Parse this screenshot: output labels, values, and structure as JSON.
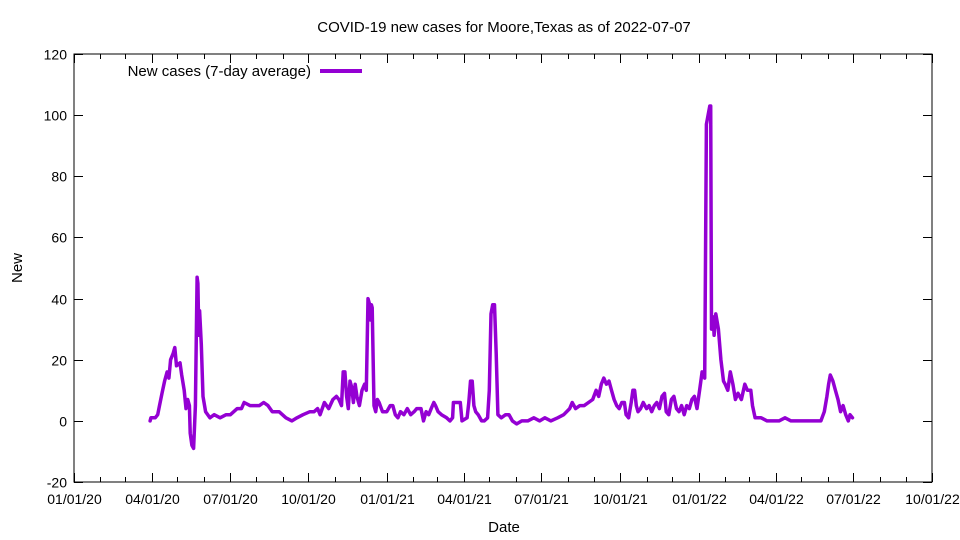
{
  "chart_data": {
    "type": "line",
    "title": "COVID-19 new cases for Moore,Texas as of 2022-07-07",
    "xlabel": "Date",
    "ylabel": "New",
    "xlim": [
      "2020-01-01",
      "2022-10-01"
    ],
    "ylim": [
      -20,
      120
    ],
    "x_ticks": [
      "01/01/20",
      "04/01/20",
      "07/01/20",
      "10/01/20",
      "01/01/21",
      "04/01/21",
      "07/01/21",
      "10/01/21",
      "01/01/22",
      "04/01/22",
      "07/01/22",
      "10/01/22"
    ],
    "y_ticks": [
      -20,
      0,
      20,
      40,
      60,
      80,
      100,
      120
    ],
    "grid": false,
    "legend_position": "top-left",
    "series": [
      {
        "name": "New cases (7-day average)",
        "color": "#9400d3",
        "points": [
          [
            "2020-03-30",
            0
          ],
          [
            "2020-03-31",
            1
          ],
          [
            "2020-04-05",
            1
          ],
          [
            "2020-04-08",
            2
          ],
          [
            "2020-04-10",
            5
          ],
          [
            "2020-04-13",
            9
          ],
          [
            "2020-04-16",
            13
          ],
          [
            "2020-04-19",
            16
          ],
          [
            "2020-04-21",
            14
          ],
          [
            "2020-04-23",
            20
          ],
          [
            "2020-04-26",
            22
          ],
          [
            "2020-04-28",
            24
          ],
          [
            "2020-04-30",
            18
          ],
          [
            "2020-05-04",
            19
          ],
          [
            "2020-05-06",
            15
          ],
          [
            "2020-05-09",
            10
          ],
          [
            "2020-05-11",
            4
          ],
          [
            "2020-05-13",
            7
          ],
          [
            "2020-05-15",
            5
          ],
          [
            "2020-05-16",
            -4
          ],
          [
            "2020-05-18",
            -8
          ],
          [
            "2020-05-20",
            -9
          ],
          [
            "2020-05-22",
            5
          ],
          [
            "2020-05-23",
            25
          ],
          [
            "2020-05-24",
            47
          ],
          [
            "2020-05-25",
            45
          ],
          [
            "2020-05-26",
            28
          ],
          [
            "2020-05-27",
            36
          ],
          [
            "2020-05-29",
            25
          ],
          [
            "2020-05-31",
            8
          ],
          [
            "2020-06-03",
            3
          ],
          [
            "2020-06-08",
            1
          ],
          [
            "2020-06-13",
            2
          ],
          [
            "2020-06-20",
            1
          ],
          [
            "2020-06-27",
            2
          ],
          [
            "2020-07-02",
            2
          ],
          [
            "2020-07-10",
            4
          ],
          [
            "2020-07-15",
            4
          ],
          [
            "2020-07-18",
            6
          ],
          [
            "2020-07-25",
            5
          ],
          [
            "2020-08-05",
            5
          ],
          [
            "2020-08-10",
            6
          ],
          [
            "2020-08-15",
            5
          ],
          [
            "2020-08-20",
            3
          ],
          [
            "2020-08-28",
            3
          ],
          [
            "2020-09-05",
            1
          ],
          [
            "2020-09-12",
            0
          ],
          [
            "2020-09-18",
            1
          ],
          [
            "2020-09-25",
            2
          ],
          [
            "2020-10-03",
            3
          ],
          [
            "2020-10-08",
            3
          ],
          [
            "2020-10-12",
            4
          ],
          [
            "2020-10-15",
            2
          ],
          [
            "2020-10-20",
            6
          ],
          [
            "2020-10-25",
            4
          ],
          [
            "2020-10-30",
            7
          ],
          [
            "2020-11-03",
            8
          ],
          [
            "2020-11-06",
            7
          ],
          [
            "2020-11-09",
            5
          ],
          [
            "2020-11-11",
            16
          ],
          [
            "2020-11-13",
            16
          ],
          [
            "2020-11-15",
            8
          ],
          [
            "2020-11-17",
            4
          ],
          [
            "2020-11-19",
            13
          ],
          [
            "2020-11-21",
            11
          ],
          [
            "2020-11-23",
            6
          ],
          [
            "2020-11-25",
            12
          ],
          [
            "2020-11-27",
            8
          ],
          [
            "2020-11-30",
            5
          ],
          [
            "2020-12-03",
            10
          ],
          [
            "2020-12-06",
            12
          ],
          [
            "2020-12-08",
            10
          ],
          [
            "2020-12-10",
            40
          ],
          [
            "2020-12-12",
            38
          ],
          [
            "2020-12-13",
            33
          ],
          [
            "2020-12-14",
            38
          ],
          [
            "2020-12-15",
            37
          ],
          [
            "2020-12-17",
            5
          ],
          [
            "2020-12-19",
            3
          ],
          [
            "2020-12-21",
            7
          ],
          [
            "2020-12-23",
            6
          ],
          [
            "2020-12-27",
            3
          ],
          [
            "2021-01-01",
            3
          ],
          [
            "2021-01-05",
            5
          ],
          [
            "2021-01-08",
            5
          ],
          [
            "2021-01-11",
            2
          ],
          [
            "2021-01-14",
            1
          ],
          [
            "2021-01-17",
            3
          ],
          [
            "2021-01-21",
            2
          ],
          [
            "2021-01-25",
            4
          ],
          [
            "2021-01-29",
            2
          ],
          [
            "2021-02-02",
            3
          ],
          [
            "2021-02-05",
            4
          ],
          [
            "2021-02-10",
            4
          ],
          [
            "2021-02-13",
            0
          ],
          [
            "2021-02-16",
            3
          ],
          [
            "2021-02-19",
            2
          ],
          [
            "2021-02-22",
            4
          ],
          [
            "2021-02-25",
            6
          ],
          [
            "2021-02-27",
            5
          ],
          [
            "2021-03-02",
            3
          ],
          [
            "2021-03-06",
            2
          ],
          [
            "2021-03-12",
            1
          ],
          [
            "2021-03-16",
            0
          ],
          [
            "2021-03-19",
            1
          ],
          [
            "2021-03-20",
            6
          ],
          [
            "2021-03-25",
            6
          ],
          [
            "2021-03-28",
            6
          ],
          [
            "2021-03-30",
            0
          ],
          [
            "2021-04-05",
            1
          ],
          [
            "2021-04-07",
            6
          ],
          [
            "2021-04-09",
            13
          ],
          [
            "2021-04-11",
            13
          ],
          [
            "2021-04-13",
            5
          ],
          [
            "2021-04-15",
            3
          ],
          [
            "2021-04-18",
            2
          ],
          [
            "2021-04-22",
            0
          ],
          [
            "2021-04-25",
            0
          ],
          [
            "2021-04-29",
            1
          ],
          [
            "2021-05-01",
            10
          ],
          [
            "2021-05-03",
            35
          ],
          [
            "2021-05-05",
            38
          ],
          [
            "2021-05-07",
            38
          ],
          [
            "2021-05-09",
            22
          ],
          [
            "2021-05-11",
            2
          ],
          [
            "2021-05-15",
            1
          ],
          [
            "2021-05-20",
            2
          ],
          [
            "2021-05-24",
            2
          ],
          [
            "2021-05-28",
            0
          ],
          [
            "2021-06-02",
            -1
          ],
          [
            "2021-06-08",
            0
          ],
          [
            "2021-06-15",
            0
          ],
          [
            "2021-06-22",
            1
          ],
          [
            "2021-06-29",
            0
          ],
          [
            "2021-07-05",
            1
          ],
          [
            "2021-07-12",
            0
          ],
          [
            "2021-07-20",
            1
          ],
          [
            "2021-07-27",
            2
          ],
          [
            "2021-08-03",
            4
          ],
          [
            "2021-08-06",
            6
          ],
          [
            "2021-08-10",
            4
          ],
          [
            "2021-08-15",
            5
          ],
          [
            "2021-08-20",
            5
          ],
          [
            "2021-08-25",
            6
          ],
          [
            "2021-08-30",
            7
          ],
          [
            "2021-09-03",
            10
          ],
          [
            "2021-09-06",
            8
          ],
          [
            "2021-09-09",
            12
          ],
          [
            "2021-09-12",
            14
          ],
          [
            "2021-09-15",
            12
          ],
          [
            "2021-09-18",
            13
          ],
          [
            "2021-09-21",
            10
          ],
          [
            "2021-09-24",
            7
          ],
          [
            "2021-09-27",
            5
          ],
          [
            "2021-09-30",
            4
          ],
          [
            "2021-10-03",
            6
          ],
          [
            "2021-10-06",
            6
          ],
          [
            "2021-10-08",
            2
          ],
          [
            "2021-10-11",
            1
          ],
          [
            "2021-10-14",
            6
          ],
          [
            "2021-10-16",
            10
          ],
          [
            "2021-10-18",
            10
          ],
          [
            "2021-10-20",
            5
          ],
          [
            "2021-10-22",
            3
          ],
          [
            "2021-10-25",
            4
          ],
          [
            "2021-10-28",
            6
          ],
          [
            "2021-11-01",
            4
          ],
          [
            "2021-11-04",
            5
          ],
          [
            "2021-11-07",
            3
          ],
          [
            "2021-11-10",
            5
          ],
          [
            "2021-11-13",
            6
          ],
          [
            "2021-11-16",
            4
          ],
          [
            "2021-11-19",
            8
          ],
          [
            "2021-11-22",
            9
          ],
          [
            "2021-11-24",
            3
          ],
          [
            "2021-11-27",
            2
          ],
          [
            "2021-11-30",
            7
          ],
          [
            "2021-12-03",
            8
          ],
          [
            "2021-12-06",
            4
          ],
          [
            "2021-12-09",
            3
          ],
          [
            "2021-12-12",
            5
          ],
          [
            "2021-12-15",
            2
          ],
          [
            "2021-12-18",
            5
          ],
          [
            "2021-12-21",
            4
          ],
          [
            "2021-12-24",
            7
          ],
          [
            "2021-12-27",
            8
          ],
          [
            "2021-12-30",
            4
          ],
          [
            "2022-01-02",
            10
          ],
          [
            "2022-01-05",
            16
          ],
          [
            "2022-01-08",
            14
          ],
          [
            "2022-01-10",
            97
          ],
          [
            "2022-01-12",
            100
          ],
          [
            "2022-01-14",
            103
          ],
          [
            "2022-01-15",
            103
          ],
          [
            "2022-01-16",
            30
          ],
          [
            "2022-01-18",
            34
          ],
          [
            "2022-01-19",
            28
          ],
          [
            "2022-01-21",
            35
          ],
          [
            "2022-01-24",
            30
          ],
          [
            "2022-01-27",
            20
          ],
          [
            "2022-01-30",
            13
          ],
          [
            "2022-02-01",
            12
          ],
          [
            "2022-02-04",
            10
          ],
          [
            "2022-02-07",
            16
          ],
          [
            "2022-02-10",
            12
          ],
          [
            "2022-02-13",
            7
          ],
          [
            "2022-02-16",
            9
          ],
          [
            "2022-02-20",
            7
          ],
          [
            "2022-02-24",
            12
          ],
          [
            "2022-02-27",
            10
          ],
          [
            "2022-03-03",
            10
          ],
          [
            "2022-03-05",
            5
          ],
          [
            "2022-03-08",
            1
          ],
          [
            "2022-03-15",
            1
          ],
          [
            "2022-03-22",
            0
          ],
          [
            "2022-03-29",
            0
          ],
          [
            "2022-04-05",
            0
          ],
          [
            "2022-04-12",
            1
          ],
          [
            "2022-04-19",
            0
          ],
          [
            "2022-04-26",
            0
          ],
          [
            "2022-05-03",
            0
          ],
          [
            "2022-05-10",
            0
          ],
          [
            "2022-05-17",
            0
          ],
          [
            "2022-05-24",
            0
          ],
          [
            "2022-05-28",
            3
          ],
          [
            "2022-05-31",
            8
          ],
          [
            "2022-06-02",
            12
          ],
          [
            "2022-06-04",
            15
          ],
          [
            "2022-06-07",
            13
          ],
          [
            "2022-06-10",
            10
          ],
          [
            "2022-06-13",
            7
          ],
          [
            "2022-06-16",
            3
          ],
          [
            "2022-06-19",
            5
          ],
          [
            "2022-06-22",
            2
          ],
          [
            "2022-06-25",
            0
          ],
          [
            "2022-06-27",
            2
          ],
          [
            "2022-06-30",
            1
          ]
        ]
      }
    ]
  }
}
